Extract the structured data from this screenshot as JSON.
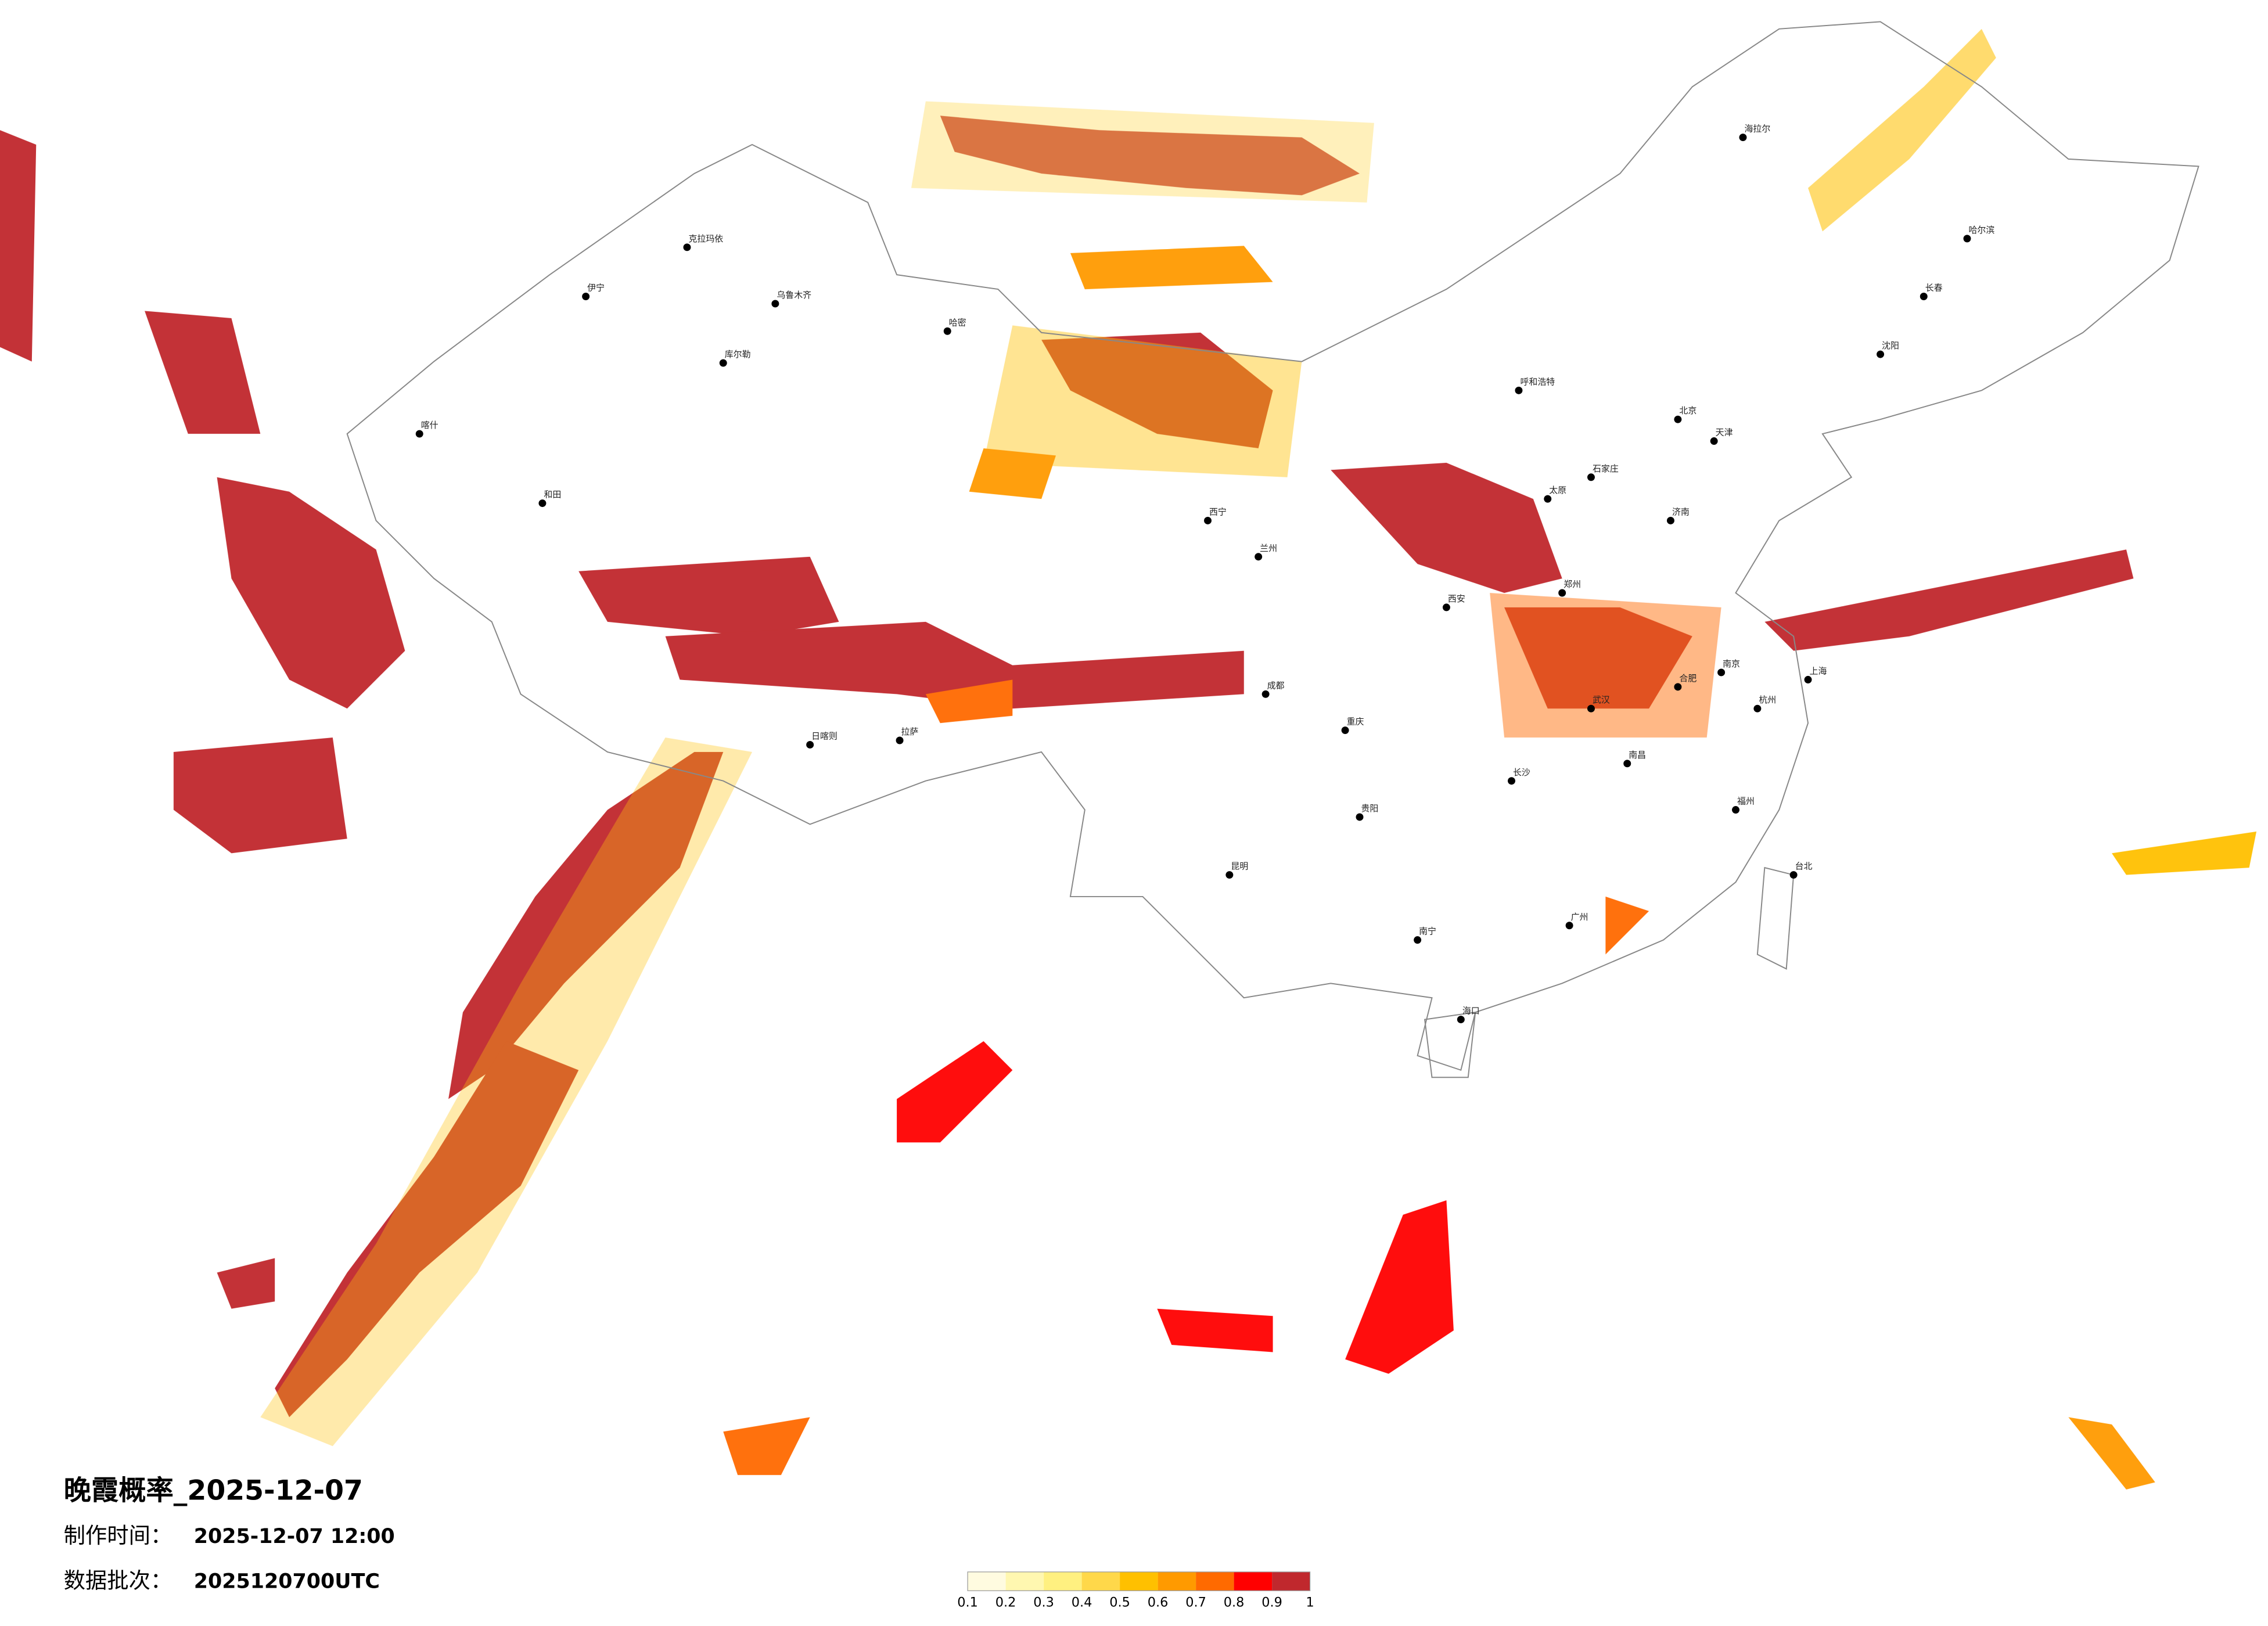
{
  "header": {
    "title": "晚霞概率_2025-12-07",
    "made_label": "制作时间：",
    "made_value": "2025-12-07 12:00",
    "batch_label": "数据批次：",
    "batch_value": "2025120700UTC"
  },
  "legend": {
    "ticks": [
      0.1,
      0.2,
      0.3,
      0.4,
      0.5,
      0.6,
      0.7,
      0.8,
      0.9,
      1
    ],
    "colors": [
      "#fffbe0",
      "#fff7b0",
      "#fff080",
      "#ffd84a",
      "#ffc000",
      "#ff9a00",
      "#ff6a00",
      "#ff0000",
      "#c0282d"
    ]
  },
  "cities": [
    "乌鲁木齐",
    "克拉玛依",
    "伊宁",
    "哈密",
    "库尔勒",
    "和田",
    "喀什",
    "拉萨",
    "日喀则",
    "西宁",
    "兰州",
    "成都",
    "重庆",
    "昆明",
    "贵阳",
    "南宁",
    "广州",
    "长沙",
    "武汉",
    "南昌",
    "福州",
    "杭州",
    "上海",
    "南京",
    "合肥",
    "济南",
    "北京",
    "天津",
    "石家庄",
    "太原",
    "呼和浩特",
    "西安",
    "郑州",
    "哈尔滨",
    "长春",
    "沈阳",
    "海拉尔",
    "台北",
    "海口"
  ]
}
